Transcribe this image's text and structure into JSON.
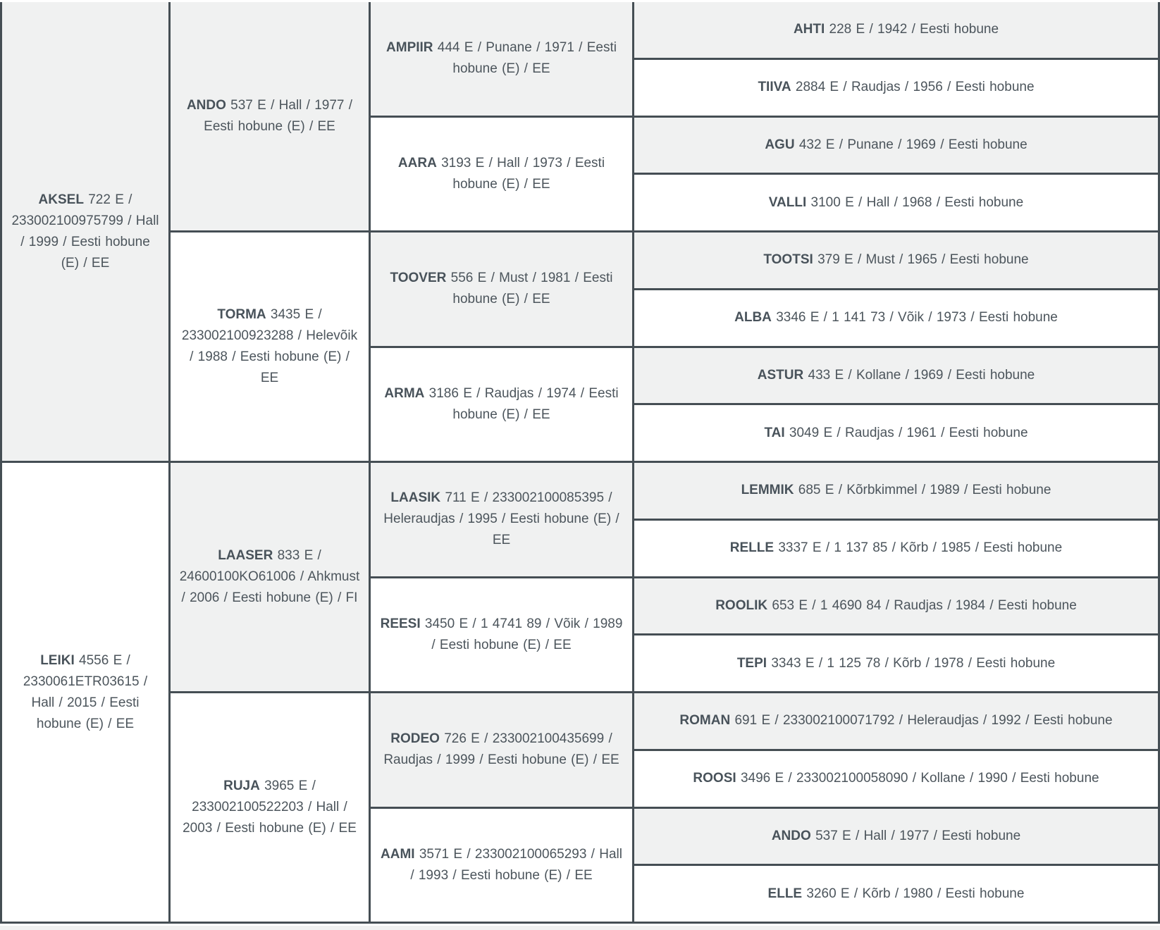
{
  "colors": {
    "border": "#454e54",
    "shaded_cell_bg": "#f0f1f1",
    "plain_cell_bg": "#ffffff",
    "text": "#4c555c"
  },
  "pedigree": {
    "gen1": [
      {
        "name": "AKSEL",
        "details": "722 E / 233002100975799 / Hall / 1999 / Eesti hobune (E) / EE",
        "shaded": true
      },
      {
        "name": "LEIKI",
        "details": "4556 E / 2330061ETR03615 / Hall / 2015 / Eesti hobune (E) / EE",
        "shaded": false
      }
    ],
    "gen2": [
      {
        "name": "ANDO",
        "details": "537 E / Hall / 1977 / Eesti hobune (E) / EE",
        "shaded": true
      },
      {
        "name": "TORMA",
        "details": "3435 E / 233002100923288 / Helevõik / 1988 / Eesti hobune (E) / EE",
        "shaded": false
      },
      {
        "name": "LAASER",
        "details": "833 E / 24600100KO61006 / Ahkmust / 2006 / Eesti hobune (E) / FI",
        "shaded": true
      },
      {
        "name": "RUJA",
        "details": "3965 E / 233002100522203 / Hall / 2003 / Eesti hobune (E) / EE",
        "shaded": false
      }
    ],
    "gen3": [
      {
        "name": "AMPIIR",
        "details": "444 E / Punane / 1971 / Eesti hobune (E) / EE",
        "shaded": true
      },
      {
        "name": "AARA",
        "details": "3193 E / Hall / 1973 / Eesti hobune (E) / EE",
        "shaded": false
      },
      {
        "name": "TOOVER",
        "details": "556 E / Must / 1981 / Eesti hobune (E) / EE",
        "shaded": true
      },
      {
        "name": "ARMA",
        "details": "3186 E / Raudjas / 1974 / Eesti hobune (E) / EE",
        "shaded": false
      },
      {
        "name": "LAASIK",
        "details": "711 E / 233002100085395 / Heleraudjas / 1995 / Eesti hobune (E) / EE",
        "shaded": true
      },
      {
        "name": "REESI",
        "details": "3450 E / 1 4741 89 / Võik / 1989 / Eesti hobune (E) / EE",
        "shaded": false
      },
      {
        "name": "RODEO",
        "details": "726 E / 233002100435699 / Raudjas / 1999 / Eesti hobune (E) / EE",
        "shaded": true
      },
      {
        "name": "AAMI",
        "details": "3571 E / 233002100065293 / Hall / 1993 / Eesti hobune (E) / EE",
        "shaded": false
      }
    ],
    "gen4": [
      {
        "name": "AHTI",
        "details": "228 E / 1942 / Eesti hobune",
        "shaded": true
      },
      {
        "name": "TIIVA",
        "details": "2884 E / Raudjas / 1956 / Eesti hobune",
        "shaded": false
      },
      {
        "name": "AGU",
        "details": "432 E / Punane / 1969 / Eesti hobune",
        "shaded": true
      },
      {
        "name": "VALLI",
        "details": "3100 E / Hall / 1968 / Eesti hobune",
        "shaded": false
      },
      {
        "name": "TOOTSI",
        "details": "379 E / Must / 1965 / Eesti hobune",
        "shaded": true
      },
      {
        "name": "ALBA",
        "details": "3346 E / 1 141 73 / Võik / 1973 / Eesti hobune",
        "shaded": false
      },
      {
        "name": "ASTUR",
        "details": "433 E / Kollane / 1969 / Eesti hobune",
        "shaded": true
      },
      {
        "name": "TAI",
        "details": "3049 E / Raudjas / 1961 / Eesti hobune",
        "shaded": false
      },
      {
        "name": "LEMMIK",
        "details": "685 E / Kõrbkimmel / 1989 / Eesti hobune",
        "shaded": true
      },
      {
        "name": "RELLE",
        "details": "3337 E / 1 137 85 / Kõrb / 1985 / Eesti hobune",
        "shaded": false
      },
      {
        "name": "ROOLIK",
        "details": "653 E / 1 4690 84 / Raudjas / 1984 / Eesti hobune",
        "shaded": true
      },
      {
        "name": "TEPI",
        "details": "3343 E / 1 125 78 / Kõrb / 1978 / Eesti hobune",
        "shaded": false
      },
      {
        "name": "ROMAN",
        "details": "691 E / 233002100071792 / Heleraudjas / 1992 / Eesti hobune",
        "shaded": true
      },
      {
        "name": "ROOSI",
        "details": "3496 E / 233002100058090 / Kollane / 1990 / Eesti hobune",
        "shaded": false
      },
      {
        "name": "ANDO",
        "details": "537 E / Hall / 1977 / Eesti hobune",
        "shaded": true
      },
      {
        "name": "ELLE",
        "details": "3260 E / Kõrb / 1980 / Eesti hobune",
        "shaded": false
      }
    ]
  }
}
